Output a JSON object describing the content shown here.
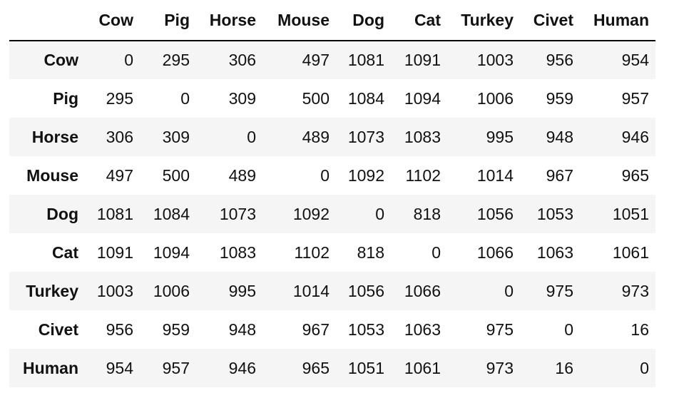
{
  "table": {
    "columns": [
      "Cow",
      "Pig",
      "Horse",
      "Mouse",
      "Dog",
      "Cat",
      "Turkey",
      "Civet",
      "Human"
    ],
    "rows": [
      {
        "label": "Cow",
        "values": [
          "0",
          "295",
          "306",
          "497",
          "1081",
          "1091",
          "1003",
          "956",
          "954"
        ]
      },
      {
        "label": "Pig",
        "values": [
          "295",
          "0",
          "309",
          "500",
          "1084",
          "1094",
          "1006",
          "959",
          "957"
        ]
      },
      {
        "label": "Horse",
        "values": [
          "306",
          "309",
          "0",
          "489",
          "1073",
          "1083",
          "995",
          "948",
          "946"
        ]
      },
      {
        "label": "Mouse",
        "values": [
          "497",
          "500",
          "489",
          "0",
          "1092",
          "1102",
          "1014",
          "967",
          "965"
        ]
      },
      {
        "label": "Dog",
        "values": [
          "1081",
          "1084",
          "1073",
          "1092",
          "0",
          "818",
          "1056",
          "1053",
          "1051"
        ]
      },
      {
        "label": "Cat",
        "values": [
          "1091",
          "1094",
          "1083",
          "1102",
          "818",
          "0",
          "1066",
          "1063",
          "1061"
        ]
      },
      {
        "label": "Turkey",
        "values": [
          "1003",
          "1006",
          "995",
          "1014",
          "1056",
          "1066",
          "0",
          "975",
          "973"
        ]
      },
      {
        "label": "Civet",
        "values": [
          "956",
          "959",
          "948",
          "967",
          "1053",
          "1063",
          "975",
          "0",
          "16"
        ]
      },
      {
        "label": "Human",
        "values": [
          "954",
          "957",
          "946",
          "965",
          "1051",
          "1061",
          "973",
          "16",
          "0"
        ]
      }
    ]
  },
  "colors": {
    "stripe": "#f5f5f5",
    "rule": "#000000",
    "text": "#111111"
  }
}
